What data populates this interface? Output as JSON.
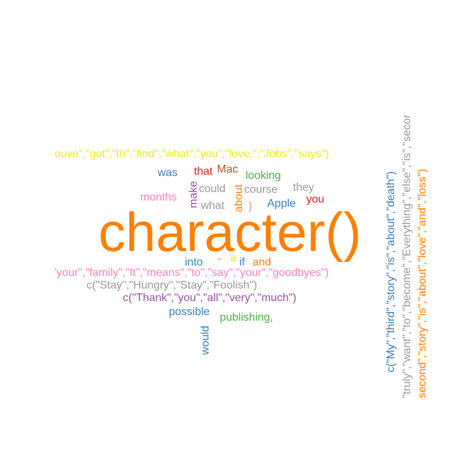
{
  "palette": {
    "orange": "#ff7f00",
    "yellow": "#f4ea1a",
    "blue": "#377eb8",
    "red": "#e41a1c",
    "brown": "#a65628",
    "green": "#4daf4a",
    "gray": "#999999",
    "pink": "#f781bf",
    "purple": "#984ea3"
  },
  "words": [
    {
      "id": "w-character",
      "text": "character()",
      "color": "#ff7f00"
    },
    {
      "id": "w-jobs-line",
      "text": "ouve\",\"got\",\"to\",\"find\",\"what\",\"you\",\"love,\",\"Jobs\",\"says\")",
      "color": "#f4ea1a"
    },
    {
      "id": "w-was",
      "text": "was",
      "color": "#377eb8"
    },
    {
      "id": "w-that",
      "text": "that",
      "color": "#e41a1c"
    },
    {
      "id": "w-mac",
      "text": "Mac",
      "color": "#a65628"
    },
    {
      "id": "w-looking",
      "text": "looking",
      "color": "#4daf4a"
    },
    {
      "id": "w-months",
      "text": "months",
      "color": "#f781bf"
    },
    {
      "id": "w-make",
      "text": "make",
      "color": "#984ea3"
    },
    {
      "id": "w-could",
      "text": "could",
      "color": "#999999"
    },
    {
      "id": "w-course",
      "text": "course",
      "color": "#999999"
    },
    {
      "id": "w-they",
      "text": "they",
      "color": "#999999"
    },
    {
      "id": "w-what",
      "text": "what",
      "color": "#999999"
    },
    {
      "id": "w-about",
      "text": "about",
      "color": "#ff7f00"
    },
    {
      "id": "w-paren",
      "text": ")",
      "color": "#f781bf"
    },
    {
      "id": "w-apple",
      "text": "Apple",
      "color": "#377eb8"
    },
    {
      "id": "w-you",
      "text": "you",
      "color": "#e41a1c"
    },
    {
      "id": "w-into",
      "text": "into",
      "color": "#377eb8"
    },
    {
      "id": "w-dash",
      "text": "-",
      "color": "#ff7f00"
    },
    {
      "id": "w-a",
      "text": "a",
      "color": "#f4ea1a"
    },
    {
      "id": "w-if",
      "text": "if",
      "color": "#377eb8"
    },
    {
      "id": "w-and",
      "text": "and",
      "color": "#ff7f00"
    },
    {
      "id": "w-family-line",
      "text": "'your\",\"family\",\"It\",\"means\",\"to\",\"say\",\"your\",\"goodbyes\")",
      "color": "#f781bf"
    },
    {
      "id": "w-stay-line",
      "text": "c(\"Stay\",\"Hungry\",\"Stay\",\"Foolish\")",
      "color": "#999999"
    },
    {
      "id": "w-thank-line",
      "text": "c(\"Thank\",\"you\",\"all\",\"very\",\"much\")",
      "color": "#984ea3"
    },
    {
      "id": "w-possible",
      "text": "possible",
      "color": "#377eb8"
    },
    {
      "id": "w-publishing",
      "text": "publishing,",
      "color": "#4daf4a"
    },
    {
      "id": "w-would",
      "text": "would",
      "color": "#377eb8"
    },
    {
      "id": "w-third-story",
      "text": "c(\"My\",\"third\",\"story\",\"is\",\"about\",\"death\")",
      "color": "#377eb8"
    },
    {
      "id": "w-truly-line",
      "text": "\"truly\",\"want\",\"to\",\"become\",\"Everything\",\"else\",\"is\",\"secor",
      "color": "#999999"
    },
    {
      "id": "w-second-story",
      "text": "second\",\"story\",\"is\",\"about\",\"love\",\"and\",\"loss\")",
      "color": "#ff7f00"
    }
  ]
}
